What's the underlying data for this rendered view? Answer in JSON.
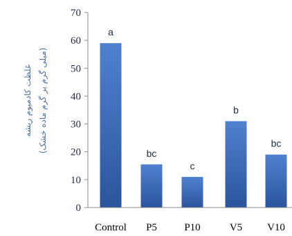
{
  "chart_data": {
    "type": "bar",
    "categories": [
      "Control",
      "P5",
      "P10",
      "V5",
      "V10"
    ],
    "values": [
      59,
      15.5,
      11,
      31,
      19
    ],
    "data_labels": [
      "a",
      "bc",
      "c",
      "b",
      "bc"
    ],
    "ylim": [
      0,
      70
    ],
    "yticks": [
      0,
      10,
      20,
      30,
      40,
      50,
      60,
      70
    ],
    "ylabel_line1": "غلظت کادمیوم ریشه",
    "ylabel_line2": "(میلی گرم بر گرم ماده خشک)",
    "title": "",
    "xlabel": "",
    "grid": false,
    "legend": "none",
    "bar_color_top": "#4f81d0",
    "bar_color_bottom": "#2a559c",
    "axis_color": "#8a8a8a",
    "ylabel_color": "#4a6fa5"
  }
}
